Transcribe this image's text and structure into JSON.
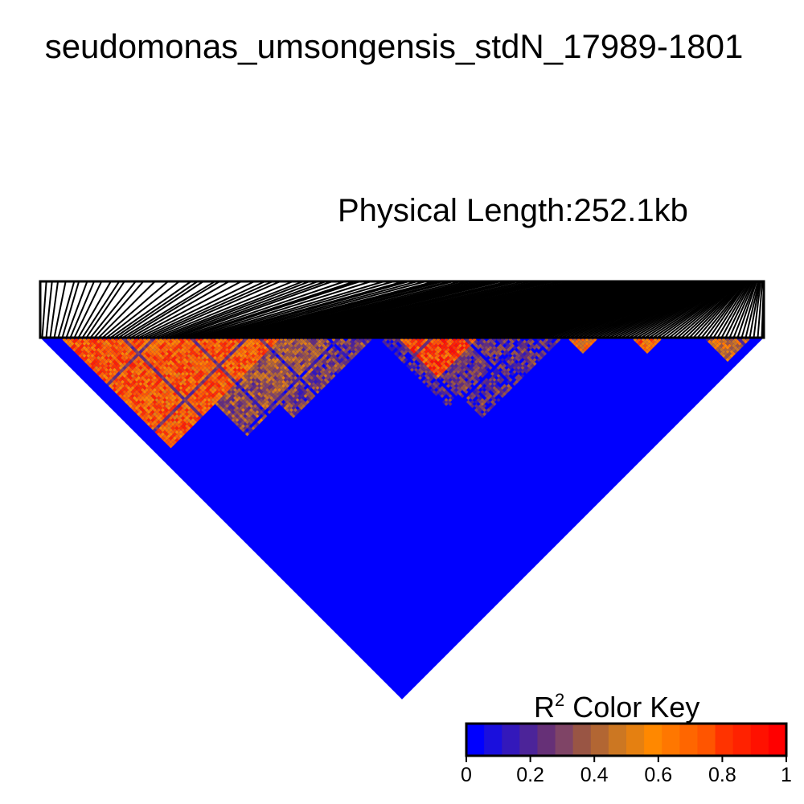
{
  "title": "seudomonas_umsongensis_stdN_17989-1801",
  "subtitle": "Physical Length:252.1kb",
  "chart_data": {
    "type": "heatmap",
    "title": "seudomonas_umsongensis_stdN_17989-1801",
    "subtitle": "Physical Length:252.1kb",
    "physical_length_kb": 252.1,
    "description_of_values": "pairwise LD r-squared between SNPs, lower triangle",
    "color_key": {
      "title_main": "R",
      "title_sup": "2",
      "title_rest": " Color Key",
      "range": [
        0,
        1
      ],
      "ticks": [
        "0",
        "0.2",
        "0.4",
        "0.6",
        "0.8",
        "1"
      ],
      "colors": [
        "#0000FF",
        "#1A0FDD",
        "#3318BB",
        "#4C2499",
        "#663077",
        "#7F4466",
        "#995544",
        "#B26633",
        "#CC7722",
        "#E58011",
        "#FF8800",
        "#FF7700",
        "#FF6600",
        "#FF5500",
        "#FF3300",
        "#FF2200",
        "#FF1100",
        "#FF0000"
      ]
    },
    "blocks": [
      {
        "range_start": 0.03,
        "range_end": 0.33,
        "r2": 0.72
      },
      {
        "range_start": 0.08,
        "range_end": 0.22,
        "r2": 0.55
      },
      {
        "range_start": 0.15,
        "range_end": 0.42,
        "r2": 0.35
      },
      {
        "range_start": 0.24,
        "range_end": 0.46,
        "r2": 0.28
      },
      {
        "range_start": 0.49,
        "range_end": 0.6,
        "r2": 0.78
      },
      {
        "range_start": 0.73,
        "range_end": 0.77,
        "r2": 0.6
      },
      {
        "range_start": 0.82,
        "range_end": 0.86,
        "r2": 0.7
      },
      {
        "range_start": 0.92,
        "range_end": 0.98,
        "r2": 0.5
      },
      {
        "range_start": 0.5,
        "range_end": 0.72,
        "r2": 0.22
      },
      {
        "range_start": 0.47,
        "range_end": 0.66,
        "r2": 0.18
      }
    ]
  }
}
